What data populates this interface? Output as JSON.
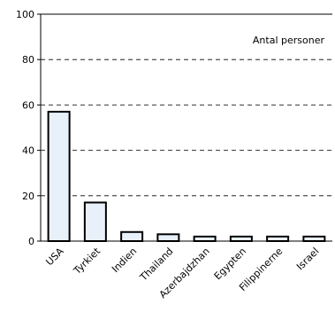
{
  "chart_data": {
    "type": "bar",
    "categories": [
      "USA",
      "Tyrkiet",
      "Indien",
      "Thailand",
      "Azerbajdzhan",
      "Egypten",
      "Filippinerne",
      "Israel"
    ],
    "series": [
      {
        "name": "Antal personer",
        "values": [
          57,
          17,
          4,
          3,
          2,
          2,
          2,
          2
        ]
      }
    ],
    "ylim": [
      0,
      100
    ],
    "yticks": [
      0,
      20,
      40,
      60,
      80,
      100
    ],
    "title": "",
    "xlabel": "",
    "ylabel": "",
    "grid": "dashed-horizontal",
    "legend_position": "top-right",
    "bar_color": "#e8f0fa",
    "bar_edge_color": "#000000"
  }
}
